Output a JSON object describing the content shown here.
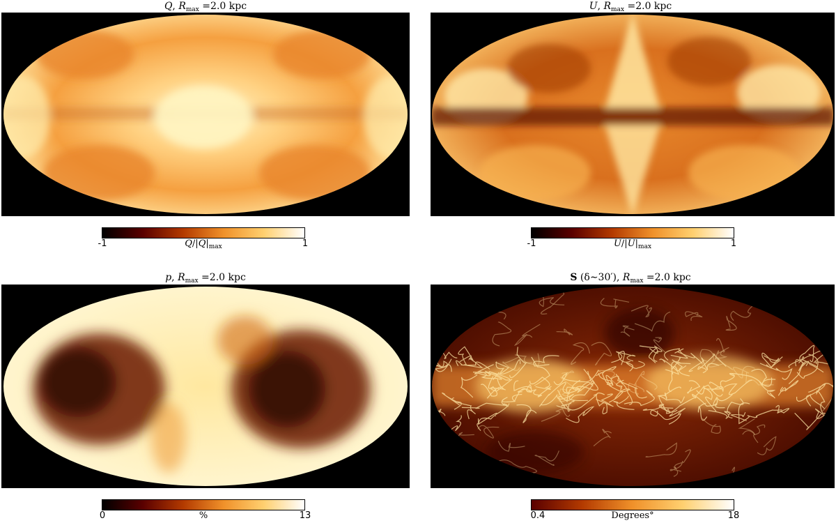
{
  "panels": [
    {
      "id": "Q",
      "title": {
        "var": "Q",
        "sep": ", ",
        "rmax": "R",
        "rmax_sub": "max",
        "eq": " =2.0 kpc"
      },
      "colorbar": {
        "min": "-1",
        "max": "1",
        "label_var": "Q",
        "label_mid": "/|",
        "label_var2": "Q",
        "label_end": "|",
        "label_sub": "max"
      },
      "colormap": "afmhot"
    },
    {
      "id": "U",
      "title": {
        "var": "U",
        "sep": ", ",
        "rmax": "R",
        "rmax_sub": "max",
        "eq": " =2.0 kpc"
      },
      "colorbar": {
        "min": "-1",
        "max": "1",
        "label_var": "U",
        "label_mid": "/|",
        "label_var2": "U",
        "label_end": "|",
        "label_sub": "max"
      },
      "colormap": "afmhot"
    },
    {
      "id": "p",
      "title": {
        "var": "p",
        "sep": ", ",
        "rmax": "R",
        "rmax_sub": "max",
        "eq": " =2.0 kpc"
      },
      "colorbar": {
        "min": "0",
        "max": "13",
        "label": "%"
      },
      "colormap": "afmhot"
    },
    {
      "id": "S",
      "title": {
        "var": "S",
        "paren": " (δ∼30′), ",
        "rmax": "R",
        "rmax_sub": "max",
        "eq": " =2.0 kpc"
      },
      "colorbar": {
        "min": "0.4",
        "max": "18",
        "label": "Degrees°"
      },
      "colormap": "afmhot"
    }
  ]
}
